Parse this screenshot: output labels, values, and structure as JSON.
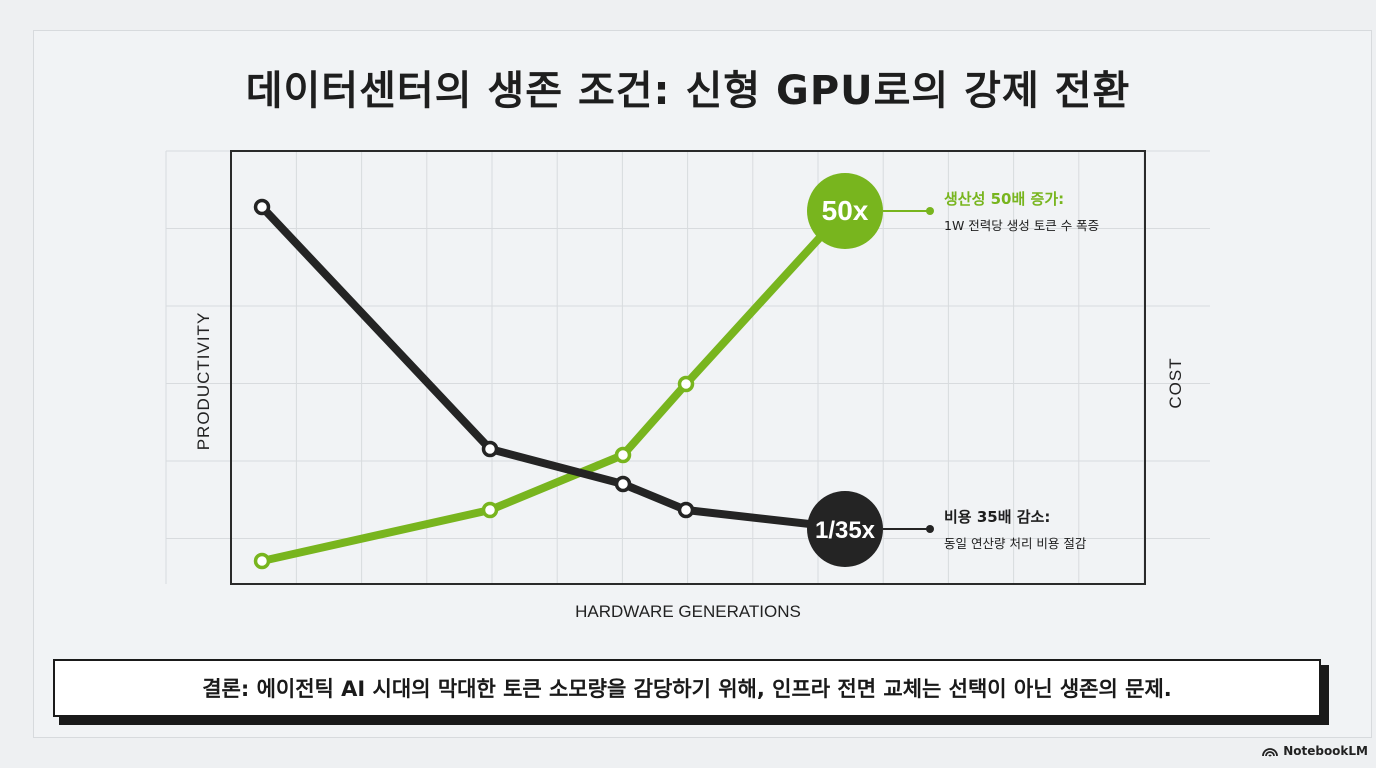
{
  "title": "데이터센터의 생존 조건: 신형 GPU로의 강제 전환",
  "chart_data": {
    "type": "line",
    "xlabel": "HARDWARE GENERATIONS",
    "ylabel": "PRODUCTIVITY",
    "ylabel_right": "COST",
    "grid": true,
    "x": [
      1,
      2,
      3,
      4,
      5
    ],
    "series": [
      {
        "key": "productivity",
        "values": [
          1,
          7,
          14,
          24,
          50
        ],
        "color": "#78b51e",
        "end_label": "50x",
        "annotation_title": "생산성 50배 증가:",
        "annotation_sub": "1W 전력당 생성 토큰 수 폭증"
      },
      {
        "key": "cost",
        "values": [
          1,
          0.39,
          0.24,
          0.13,
          0.0286
        ],
        "color": "#242424",
        "end_label": "1/35x",
        "annotation_title": "비용 35배 감소:",
        "annotation_sub": "동일 연산량 처리 비용 절감"
      }
    ]
  },
  "conclusion": "결론: 에이전틱 AI 시대의 막대한 토큰 소모량을 감당하기 위해, 인프라 전면 교체는 선택이 아닌 생존의 문제.",
  "brand": "NotebookLM"
}
